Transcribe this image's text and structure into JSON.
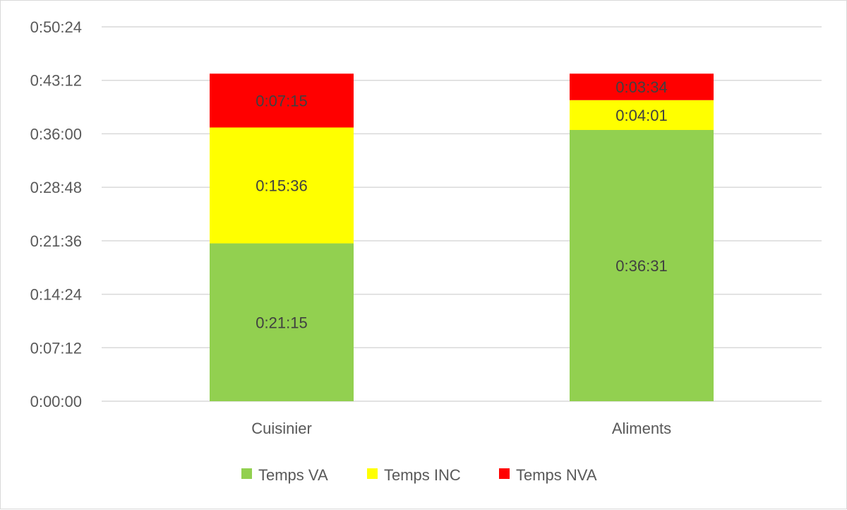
{
  "chart_data": {
    "type": "bar",
    "stacked": true,
    "categories": [
      "Cuisinier",
      "Aliments"
    ],
    "series": [
      {
        "name": "Temps VA",
        "color": "#92d050",
        "values": [
          1275,
          2191
        ],
        "labels": [
          "0:21:15",
          "0:36:31"
        ]
      },
      {
        "name": "Temps INC",
        "color": "#ffff00",
        "values": [
          936,
          241
        ],
        "labels": [
          "0:15:36",
          "0:04:01"
        ]
      },
      {
        "name": "Temps NVA",
        "color": "#ff0000",
        "values": [
          435,
          214
        ],
        "labels": [
          "0:07:15",
          "0:03:34"
        ]
      }
    ],
    "yticks": [
      "0:00:00",
      "0:07:12",
      "0:14:24",
      "0:21:36",
      "0:28:48",
      "0:36:00",
      "0:43:12",
      "0:50:24"
    ],
    "ylim": [
      0,
      3024
    ],
    "ytick_step": 432,
    "grid": true,
    "legend": "bottom"
  }
}
